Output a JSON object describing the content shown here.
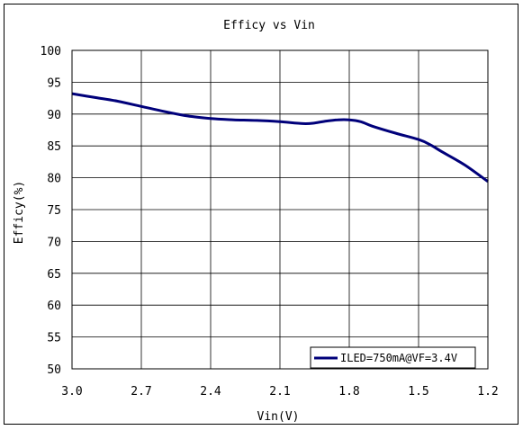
{
  "chart_data": {
    "type": "line",
    "title": "Efficy vs Vin",
    "xlabel": "Vin(V)",
    "ylabel": "Efficy(%)",
    "xlim": [
      3.0,
      1.2
    ],
    "ylim": [
      50,
      100
    ],
    "x_ticks": [
      "3.0",
      "2.7",
      "2.4",
      "2.1",
      "1.8",
      "1.5",
      "1.2"
    ],
    "y_ticks": [
      "50",
      "55",
      "60",
      "65",
      "70",
      "75",
      "80",
      "85",
      "90",
      "95",
      "100"
    ],
    "grid": true,
    "x_reversed": true,
    "legend_position": "bottom-right",
    "series": [
      {
        "name": "ILED=750mA@VF=3.4V",
        "color": "#00007a",
        "x": [
          3.0,
          2.9,
          2.8,
          2.7,
          2.6,
          2.5,
          2.4,
          2.3,
          2.2,
          2.1,
          2.0,
          1.95,
          1.9,
          1.85,
          1.8,
          1.75,
          1.7,
          1.6,
          1.5,
          1.45,
          1.4,
          1.3,
          1.2
        ],
        "y": [
          93.2,
          92.6,
          92.0,
          91.2,
          90.4,
          89.7,
          89.3,
          89.1,
          89.0,
          88.8,
          88.5,
          88.6,
          88.9,
          89.1,
          89.1,
          88.8,
          88.1,
          87.0,
          86.0,
          85.2,
          84.1,
          82.0,
          79.4
        ]
      }
    ]
  }
}
